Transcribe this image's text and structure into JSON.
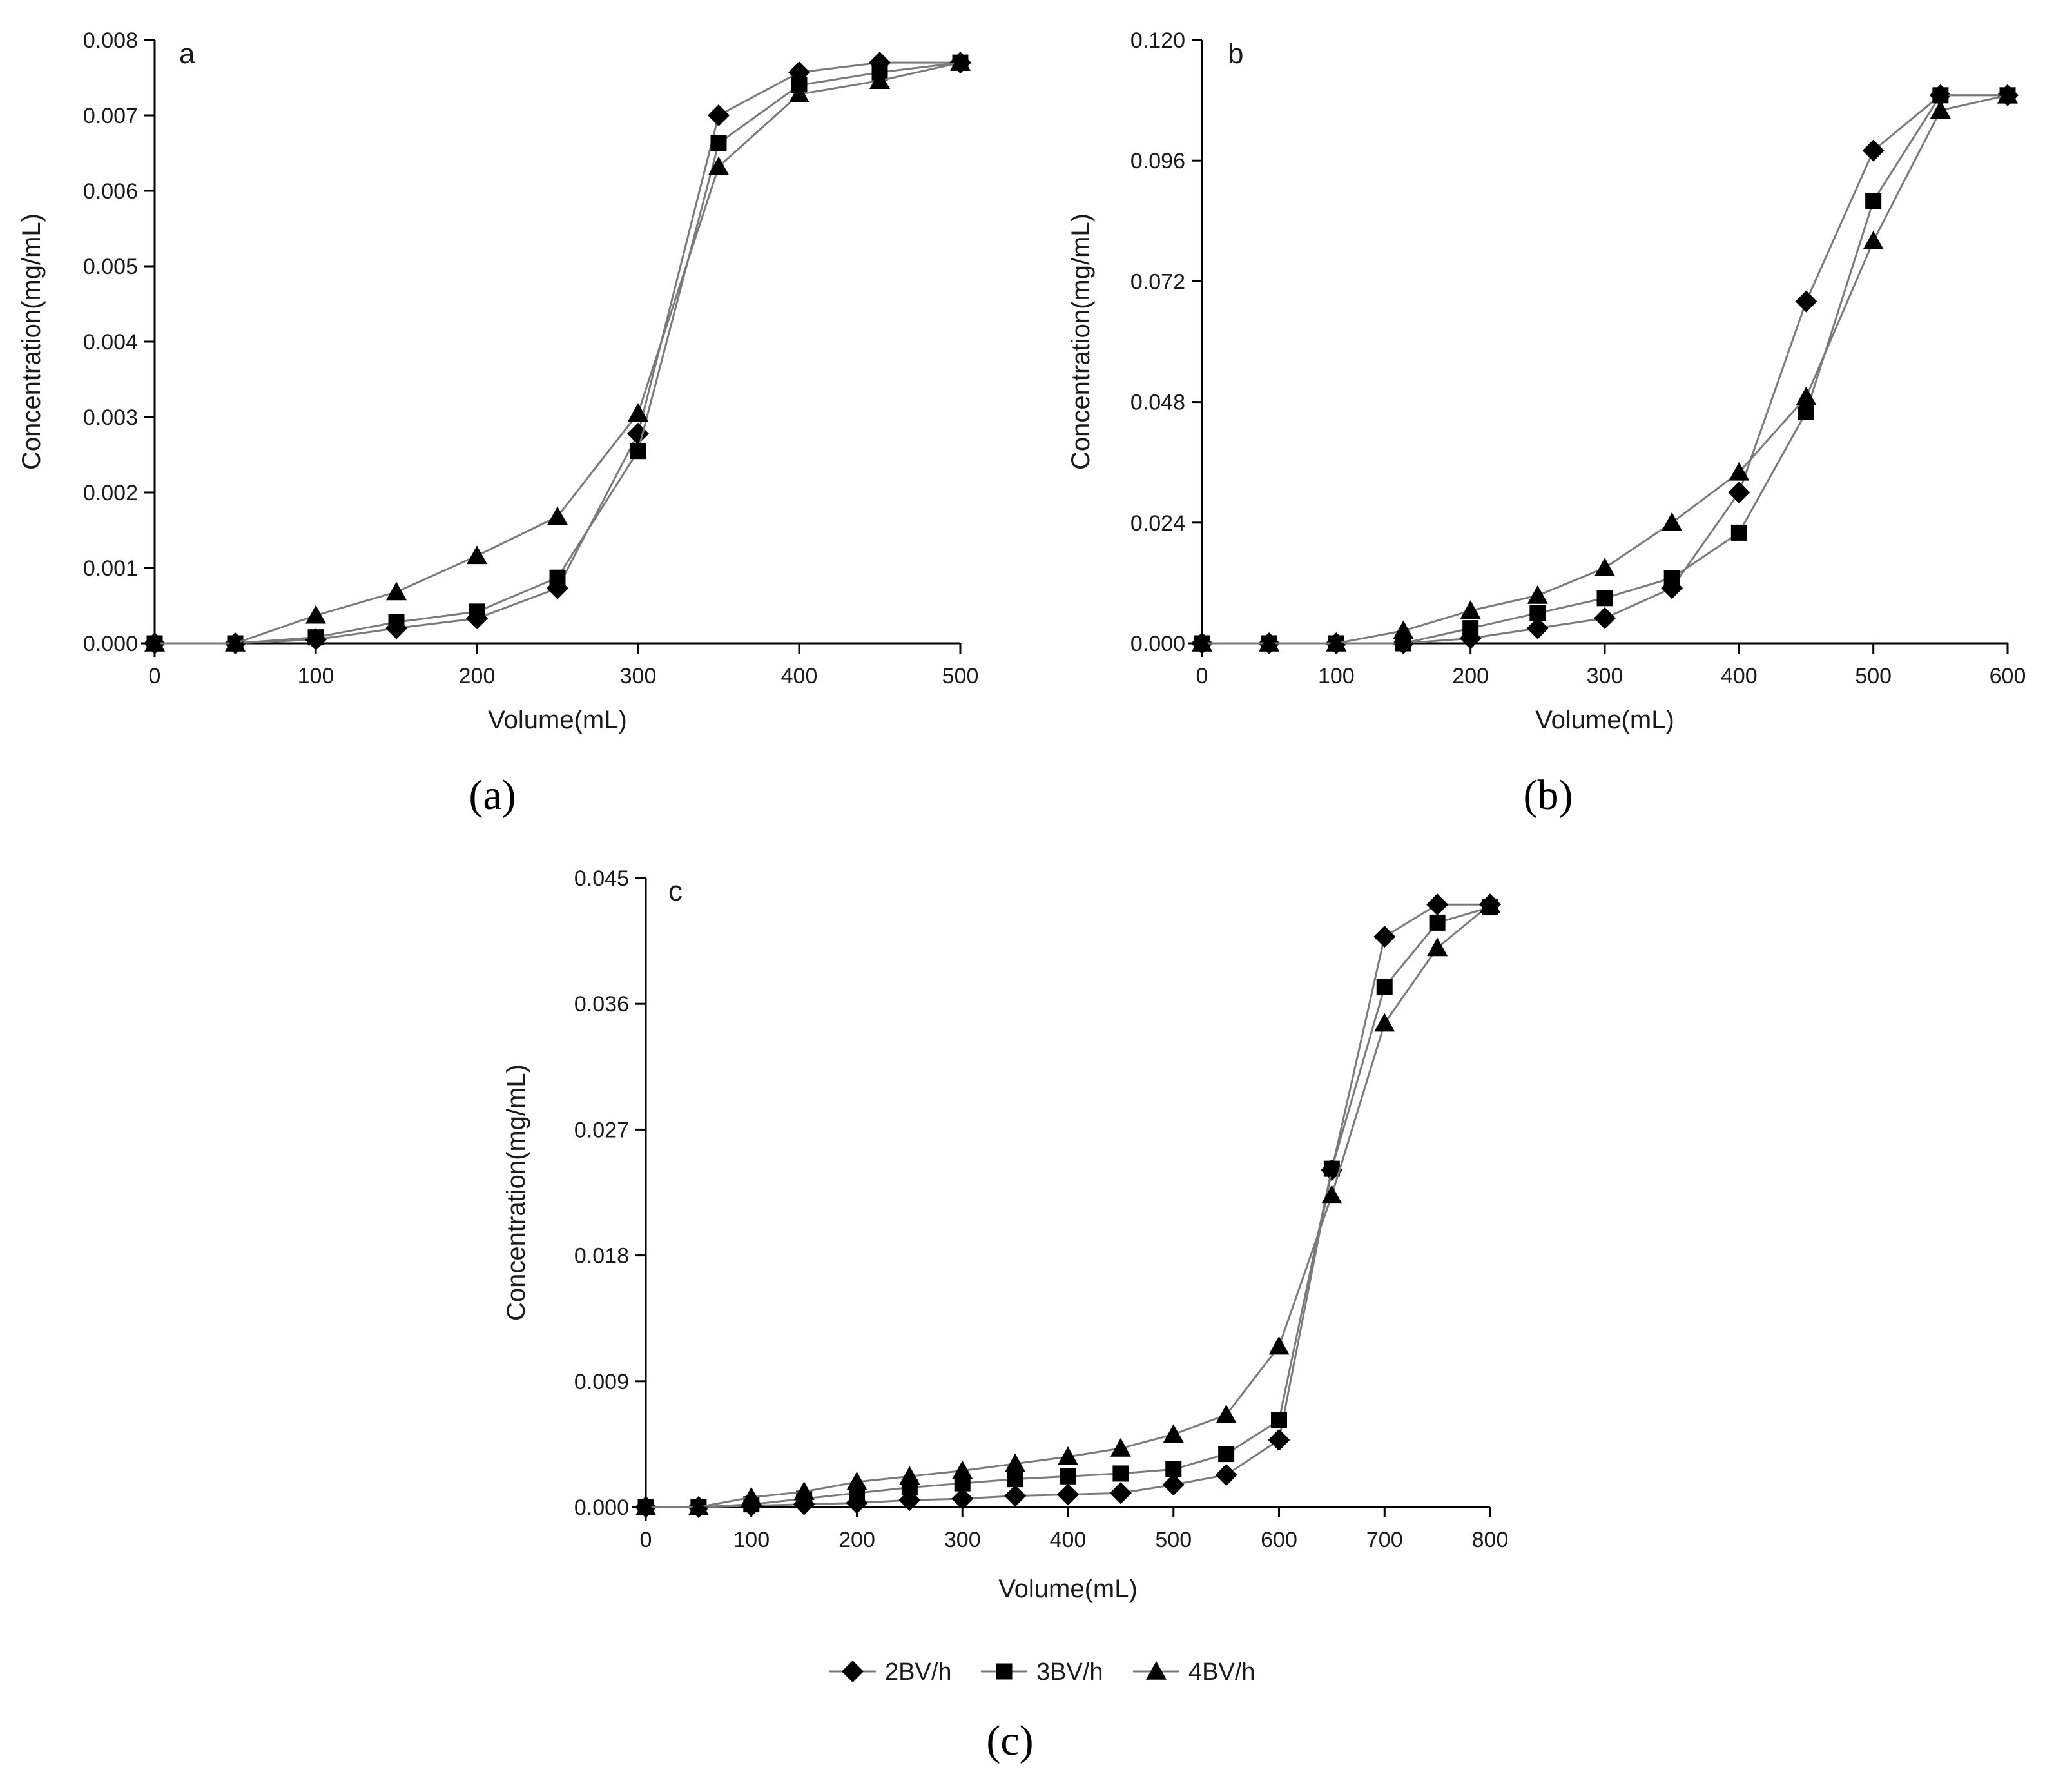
{
  "chart_data": [
    {
      "id": "a",
      "type": "line",
      "panel_label": "a",
      "caption": "(a)",
      "xlabel": "Volume(mL)",
      "ylabel": "Concentration(mg/mL)",
      "xlim": [
        0,
        500
      ],
      "ylim": [
        0,
        0.008
      ],
      "xticks": [
        0,
        100,
        200,
        300,
        400,
        500
      ],
      "yticks": [
        0.0,
        0.001,
        0.002,
        0.003,
        0.004,
        0.005,
        0.006,
        0.007,
        0.008
      ],
      "ytick_labels": [
        "0.000",
        "0.001",
        "0.002",
        "0.003",
        "0.004",
        "0.005",
        "0.006",
        "0.007",
        "0.008"
      ],
      "x": [
        0,
        50,
        100,
        150,
        200,
        250,
        300,
        350,
        400,
        450,
        500
      ],
      "series": [
        {
          "name": "2BV/h",
          "marker": "diamond",
          "values": [
            0,
            0,
            5e-05,
            0.0002,
            0.00033,
            0.00073,
            0.00278,
            0.007,
            0.00757,
            0.0077,
            0.0077
          ]
        },
        {
          "name": "3BV/h",
          "marker": "square",
          "values": [
            0,
            0,
            8e-05,
            0.00028,
            0.00042,
            0.00087,
            0.00255,
            0.00663,
            0.0074,
            0.00757,
            0.0077
          ]
        },
        {
          "name": "4BV/h",
          "marker": "triangle",
          "values": [
            0,
            0,
            0.00037,
            0.00068,
            0.00116,
            0.00168,
            0.00305,
            0.00632,
            0.00728,
            0.00746,
            0.0077
          ]
        }
      ]
    },
    {
      "id": "b",
      "type": "line",
      "panel_label": "b",
      "caption": "(b)",
      "xlabel": "Volume(mL)",
      "ylabel": "Concentration(mg/mL)",
      "xlim": [
        0,
        600
      ],
      "ylim": [
        0,
        0.12
      ],
      "xticks": [
        0,
        100,
        200,
        300,
        400,
        500,
        600
      ],
      "yticks": [
        0.0,
        0.024,
        0.048,
        0.072,
        0.096,
        0.12
      ],
      "ytick_labels": [
        "0.000",
        "0.024",
        "0.048",
        "0.072",
        "0.096",
        "0.120"
      ],
      "x": [
        0,
        50,
        100,
        150,
        200,
        250,
        300,
        350,
        400,
        450,
        500,
        550,
        600
      ],
      "series": [
        {
          "name": "2BV/h",
          "marker": "diamond",
          "values": [
            0,
            0,
            0,
            0,
            0.001,
            0.003,
            0.005,
            0.011,
            0.03,
            0.068,
            0.098,
            0.109,
            0.109
          ]
        },
        {
          "name": "3BV/h",
          "marker": "square",
          "values": [
            0,
            0,
            0,
            0,
            0.003,
            0.006,
            0.009,
            0.013,
            0.022,
            0.046,
            0.088,
            0.109,
            0.109
          ]
        },
        {
          "name": "4BV/h",
          "marker": "triangle",
          "values": [
            0,
            0,
            0,
            0.0025,
            0.0065,
            0.0095,
            0.015,
            0.024,
            0.034,
            0.049,
            0.08,
            0.106,
            0.109
          ]
        }
      ]
    },
    {
      "id": "c",
      "type": "line",
      "panel_label": "c",
      "caption": "(c)",
      "xlabel": "Volume(mL)",
      "ylabel": "Concentration(mg/mL)",
      "xlim": [
        0,
        800
      ],
      "ylim": [
        0,
        0.045
      ],
      "xticks": [
        0,
        100,
        200,
        300,
        400,
        500,
        600,
        700,
        800
      ],
      "yticks": [
        0.0,
        0.009,
        0.018,
        0.027,
        0.036,
        0.045
      ],
      "ytick_labels": [
        "0.000",
        "0.009",
        "0.018",
        "0.027",
        "0.036",
        "0.045"
      ],
      "x": [
        0,
        50,
        100,
        150,
        200,
        250,
        300,
        350,
        400,
        450,
        500,
        550,
        600,
        650,
        700,
        750,
        800
      ],
      "series": [
        {
          "name": "2BV/h",
          "marker": "diamond",
          "values": [
            0,
            0,
            0.0001,
            0.0002,
            0.0003,
            0.0005,
            0.0006,
            0.0008,
            0.0009,
            0.001,
            0.0016,
            0.0023,
            0.0048,
            0.0241,
            0.0408,
            0.0431,
            0.0431
          ]
        },
        {
          "name": "3BV/h",
          "marker": "square",
          "values": [
            0,
            0,
            0.0002,
            0.0006,
            0.001,
            0.0014,
            0.0017,
            0.002,
            0.0022,
            0.0024,
            0.0027,
            0.0038,
            0.0062,
            0.0242,
            0.0372,
            0.0418,
            0.0429
          ]
        },
        {
          "name": "4BV/h",
          "marker": "triangle",
          "values": [
            0,
            0,
            0.0007,
            0.0011,
            0.0018,
            0.0022,
            0.0026,
            0.0031,
            0.0036,
            0.0042,
            0.0052,
            0.0066,
            0.0115,
            0.0223,
            0.0346,
            0.04,
            0.0431
          ]
        }
      ]
    }
  ],
  "legend": {
    "entries": [
      {
        "label": "2BV/h",
        "marker": "diamond"
      },
      {
        "label": "3BV/h",
        "marker": "square"
      },
      {
        "label": "4BV/h",
        "marker": "triangle"
      }
    ]
  },
  "colors": {
    "line": "#7a7a7a",
    "marker": "#000000",
    "axis": "#000000"
  }
}
